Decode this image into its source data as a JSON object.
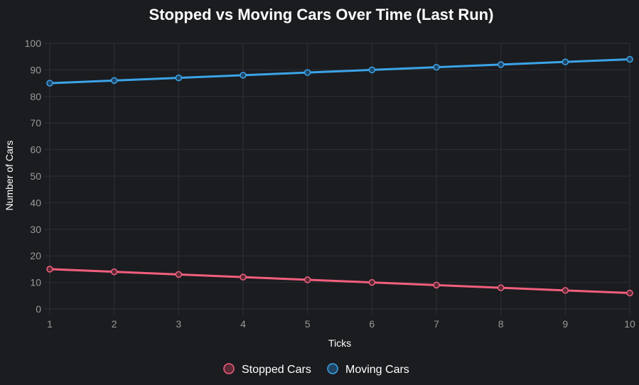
{
  "chart_data": {
    "type": "line",
    "title": "Stopped vs Moving Cars Over Time (Last Run)",
    "xlabel": "Ticks",
    "ylabel": "Number of Cars",
    "x": [
      1,
      2,
      3,
      4,
      5,
      6,
      7,
      8,
      9,
      10
    ],
    "ylim": [
      0,
      100
    ],
    "yticks": [
      0,
      10,
      20,
      30,
      40,
      50,
      60,
      70,
      80,
      90,
      100
    ],
    "grid": true,
    "legend_position": "bottom",
    "series": [
      {
        "name": "Stopped Cars",
        "values": [
          15,
          14,
          13,
          12,
          11,
          10,
          9,
          8,
          7,
          6
        ],
        "color": "#f25f7d",
        "fill": "#5a2a35"
      },
      {
        "name": "Moving Cars",
        "values": [
          85,
          86,
          87,
          88,
          89,
          90,
          91,
          92,
          93,
          94
        ],
        "color": "#3ba4e8",
        "fill": "#1f4565"
      }
    ]
  },
  "colors": {
    "background": "#1b1c20",
    "grid": "#2e2f35",
    "tick_text": "#9a9a9a",
    "text": "#ffffff"
  }
}
